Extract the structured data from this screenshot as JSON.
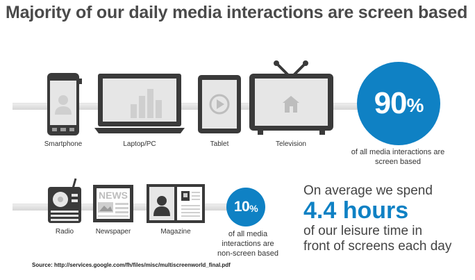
{
  "title": "Majority of our daily media interactions are screen based",
  "screen_devices": [
    {
      "label": "Smartphone",
      "icon": "smartphone-icon"
    },
    {
      "label": "Laptop/PC",
      "icon": "laptop-icon"
    },
    {
      "label": "Tablet",
      "icon": "tablet-icon"
    },
    {
      "label": "Television",
      "icon": "television-icon"
    }
  ],
  "screen_stat": {
    "number": "90",
    "unit": "%",
    "caption": "of all media interactions are screen based"
  },
  "nonscreen_devices": [
    {
      "label": "Radio",
      "icon": "radio-icon"
    },
    {
      "label": "Newspaper",
      "icon": "newspaper-icon"
    },
    {
      "label": "Magazine",
      "icon": "magazine-icon"
    }
  ],
  "nonscreen_stat": {
    "number": "10",
    "unit": "%",
    "caption": "of all media interactions are non-screen based"
  },
  "newspaper_masthead": "NEWS",
  "average": {
    "line1": "On average we spend",
    "hours": "4.4 hours",
    "line3": "of our leisure time in",
    "line4": "front of screens each day"
  },
  "source": "Source: http://services.google.com/fh/files/misc/multiscreenworld_final.pdf",
  "colors": {
    "accent": "#0f81c4",
    "device": "#3a3a3a",
    "screen_fill": "#e6e6e6"
  }
}
